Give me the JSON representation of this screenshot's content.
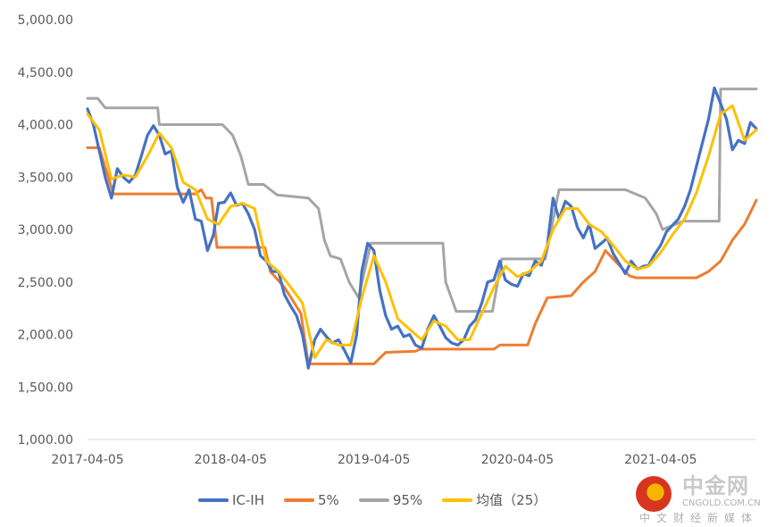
{
  "chart_data": {
    "type": "line",
    "title": "",
    "xlabel": "",
    "ylabel": "",
    "ylim": [
      1000,
      5000
    ],
    "xlim": [
      "2017-04-05",
      "2021-12-05"
    ],
    "y_ticks": [
      "1,000.00",
      "1,500.00",
      "2,000.00",
      "2,500.00",
      "3,000.00",
      "3,500.00",
      "4,000.00",
      "4,500.00",
      "5,000.00"
    ],
    "x_ticks": [
      "2017-04-05",
      "2018-04-05",
      "2019-04-05",
      "2020-04-05",
      "2021-04-05"
    ],
    "grid": false,
    "legend_position": "bottom",
    "series": [
      {
        "name": "IC-IH",
        "color": "#4472C4",
        "points": [
          [
            "2017-04-05",
            4150
          ],
          [
            "2017-04-20",
            4000
          ],
          [
            "2017-05-05",
            3750
          ],
          [
            "2017-05-20",
            3500
          ],
          [
            "2017-06-05",
            3300
          ],
          [
            "2017-06-20",
            3580
          ],
          [
            "2017-07-05",
            3500
          ],
          [
            "2017-07-20",
            3450
          ],
          [
            "2017-08-05",
            3520
          ],
          [
            "2017-08-20",
            3700
          ],
          [
            "2017-09-05",
            3900
          ],
          [
            "2017-09-20",
            3990
          ],
          [
            "2017-10-05",
            3900
          ],
          [
            "2017-10-20",
            3720
          ],
          [
            "2017-11-05",
            3750
          ],
          [
            "2017-11-20",
            3400
          ],
          [
            "2017-12-05",
            3260
          ],
          [
            "2017-12-20",
            3380
          ],
          [
            "2018-01-05",
            3100
          ],
          [
            "2018-01-20",
            3080
          ],
          [
            "2018-02-05",
            2800
          ],
          [
            "2018-02-20",
            2950
          ],
          [
            "2018-03-05",
            3250
          ],
          [
            "2018-03-20",
            3260
          ],
          [
            "2018-04-05",
            3350
          ],
          [
            "2018-04-20",
            3230
          ],
          [
            "2018-05-05",
            3250
          ],
          [
            "2018-05-20",
            3150
          ],
          [
            "2018-06-05",
            3000
          ],
          [
            "2018-06-20",
            2750
          ],
          [
            "2018-07-05",
            2700
          ],
          [
            "2018-07-20",
            2600
          ],
          [
            "2018-08-05",
            2600
          ],
          [
            "2018-08-20",
            2380
          ],
          [
            "2018-09-05",
            2270
          ],
          [
            "2018-09-20",
            2180
          ],
          [
            "2018-10-05",
            2000
          ],
          [
            "2018-10-20",
            1680
          ],
          [
            "2018-11-05",
            1950
          ],
          [
            "2018-11-20",
            2050
          ],
          [
            "2018-12-05",
            1980
          ],
          [
            "2018-12-20",
            1920
          ],
          [
            "2019-01-05",
            1950
          ],
          [
            "2019-01-20",
            1850
          ],
          [
            "2019-02-05",
            1730
          ],
          [
            "2019-02-20",
            2000
          ],
          [
            "2019-03-05",
            2600
          ],
          [
            "2019-03-20",
            2870
          ],
          [
            "2019-04-05",
            2800
          ],
          [
            "2019-04-20",
            2420
          ],
          [
            "2019-05-05",
            2180
          ],
          [
            "2019-05-20",
            2050
          ],
          [
            "2019-06-05",
            2080
          ],
          [
            "2019-06-20",
            1980
          ],
          [
            "2019-07-05",
            2000
          ],
          [
            "2019-07-20",
            1900
          ],
          [
            "2019-08-05",
            1870
          ],
          [
            "2019-08-20",
            2050
          ],
          [
            "2019-09-05",
            2180
          ],
          [
            "2019-09-20",
            2080
          ],
          [
            "2019-10-05",
            1970
          ],
          [
            "2019-10-20",
            1920
          ],
          [
            "2019-11-05",
            1900
          ],
          [
            "2019-11-20",
            1950
          ],
          [
            "2019-12-05",
            2080
          ],
          [
            "2019-12-20",
            2140
          ],
          [
            "2020-01-05",
            2300
          ],
          [
            "2020-01-20",
            2500
          ],
          [
            "2020-02-05",
            2520
          ],
          [
            "2020-02-20",
            2700
          ],
          [
            "2020-03-05",
            2520
          ],
          [
            "2020-03-20",
            2480
          ],
          [
            "2020-04-05",
            2460
          ],
          [
            "2020-04-20",
            2580
          ],
          [
            "2020-05-05",
            2560
          ],
          [
            "2020-05-20",
            2700
          ],
          [
            "2020-06-05",
            2660
          ],
          [
            "2020-06-20",
            2850
          ],
          [
            "2020-07-05",
            3300
          ],
          [
            "2020-07-20",
            3100
          ],
          [
            "2020-08-05",
            3270
          ],
          [
            "2020-08-20",
            3220
          ],
          [
            "2020-09-05",
            3020
          ],
          [
            "2020-09-20",
            2920
          ],
          [
            "2020-10-05",
            3050
          ],
          [
            "2020-10-20",
            2820
          ],
          [
            "2020-11-05",
            2870
          ],
          [
            "2020-11-20",
            2920
          ],
          [
            "2020-12-05",
            2770
          ],
          [
            "2020-12-20",
            2680
          ],
          [
            "2021-01-05",
            2580
          ],
          [
            "2021-01-20",
            2700
          ],
          [
            "2021-02-05",
            2620
          ],
          [
            "2021-02-20",
            2650
          ],
          [
            "2021-03-05",
            2660
          ],
          [
            "2021-03-20",
            2760
          ],
          [
            "2021-04-05",
            2850
          ],
          [
            "2021-04-20",
            2980
          ],
          [
            "2021-05-05",
            3040
          ],
          [
            "2021-05-20",
            3100
          ],
          [
            "2021-06-05",
            3220
          ],
          [
            "2021-06-20",
            3380
          ],
          [
            "2021-07-05",
            3600
          ],
          [
            "2021-07-20",
            3820
          ],
          [
            "2021-08-05",
            4050
          ],
          [
            "2021-08-20",
            4350
          ],
          [
            "2021-09-05",
            4200
          ],
          [
            "2021-09-20",
            4050
          ],
          [
            "2021-10-05",
            3760
          ],
          [
            "2021-10-20",
            3850
          ],
          [
            "2021-11-05",
            3820
          ],
          [
            "2021-11-20",
            4020
          ],
          [
            "2021-12-05",
            3960
          ]
        ]
      },
      {
        "name": "5%",
        "color": "#ED7D31",
        "points": [
          [
            "2017-04-05",
            3780
          ],
          [
            "2017-05-05",
            3780
          ],
          [
            "2017-06-10",
            3340
          ],
          [
            "2018-01-05",
            3340
          ],
          [
            "2018-01-20",
            3380
          ],
          [
            "2018-02-01",
            3300
          ],
          [
            "2018-02-15",
            3300
          ],
          [
            "2018-03-01",
            2830
          ],
          [
            "2018-07-01",
            2830
          ],
          [
            "2018-07-15",
            2600
          ],
          [
            "2018-08-20",
            2450
          ],
          [
            "2018-10-01",
            2200
          ],
          [
            "2018-10-20",
            1720
          ],
          [
            "2019-04-05",
            1720
          ],
          [
            "2019-05-05",
            1830
          ],
          [
            "2019-07-20",
            1840
          ],
          [
            "2019-08-01",
            1860
          ],
          [
            "2020-02-05",
            1860
          ],
          [
            "2020-02-20",
            1900
          ],
          [
            "2020-05-01",
            1900
          ],
          [
            "2020-05-20",
            2100
          ],
          [
            "2020-06-20",
            2350
          ],
          [
            "2020-08-20",
            2370
          ],
          [
            "2020-09-20",
            2500
          ],
          [
            "2020-10-20",
            2600
          ],
          [
            "2020-11-15",
            2800
          ],
          [
            "2020-12-10",
            2700
          ],
          [
            "2021-01-15",
            2560
          ],
          [
            "2021-02-01",
            2540
          ],
          [
            "2021-07-05",
            2540
          ],
          [
            "2021-08-05",
            2600
          ],
          [
            "2021-09-05",
            2700
          ],
          [
            "2021-10-05",
            2900
          ],
          [
            "2021-11-05",
            3050
          ],
          [
            "2021-12-05",
            3280
          ]
        ]
      },
      {
        "name": "95%",
        "color": "#A5A5A5",
        "points": [
          [
            "2017-04-05",
            4250
          ],
          [
            "2017-05-01",
            4250
          ],
          [
            "2017-05-20",
            4160
          ],
          [
            "2017-10-01",
            4160
          ],
          [
            "2017-10-05",
            4000
          ],
          [
            "2018-03-15",
            4000
          ],
          [
            "2018-04-10",
            3900
          ],
          [
            "2018-05-01",
            3700
          ],
          [
            "2018-05-20",
            3430
          ],
          [
            "2018-06-28",
            3430
          ],
          [
            "2018-08-01",
            3330
          ],
          [
            "2018-10-20",
            3300
          ],
          [
            "2018-11-15",
            3200
          ],
          [
            "2018-11-30",
            2900
          ],
          [
            "2018-12-15",
            2750
          ],
          [
            "2019-01-10",
            2720
          ],
          [
            "2019-02-01",
            2500
          ],
          [
            "2019-02-25",
            2350
          ],
          [
            "2019-03-28",
            2870
          ],
          [
            "2019-09-28",
            2870
          ],
          [
            "2019-10-05",
            2500
          ],
          [
            "2019-11-01",
            2220
          ],
          [
            "2020-02-01",
            2220
          ],
          [
            "2020-02-25",
            2720
          ],
          [
            "2020-06-15",
            2720
          ],
          [
            "2020-07-20",
            3380
          ],
          [
            "2021-01-05",
            3380
          ],
          [
            "2021-02-25",
            3300
          ],
          [
            "2021-03-25",
            3150
          ],
          [
            "2021-04-10",
            3000
          ],
          [
            "2021-06-01",
            3080
          ],
          [
            "2021-09-01",
            3080
          ],
          [
            "2021-09-05",
            4340
          ],
          [
            "2021-12-05",
            4340
          ]
        ]
      },
      {
        "name": "均值（25）",
        "color": "#FFC000",
        "points": [
          [
            "2017-04-05",
            4100
          ],
          [
            "2017-05-05",
            3950
          ],
          [
            "2017-06-05",
            3480
          ],
          [
            "2017-07-05",
            3520
          ],
          [
            "2017-08-05",
            3500
          ],
          [
            "2017-09-05",
            3700
          ],
          [
            "2017-10-05",
            3920
          ],
          [
            "2017-11-05",
            3780
          ],
          [
            "2017-12-05",
            3450
          ],
          [
            "2018-01-05",
            3380
          ],
          [
            "2018-02-05",
            3100
          ],
          [
            "2018-03-05",
            3050
          ],
          [
            "2018-04-05",
            3220
          ],
          [
            "2018-05-05",
            3250
          ],
          [
            "2018-06-05",
            3200
          ],
          [
            "2018-07-05",
            2700
          ],
          [
            "2018-08-05",
            2600
          ],
          [
            "2018-09-05",
            2450
          ],
          [
            "2018-10-05",
            2300
          ],
          [
            "2018-11-05",
            1780
          ],
          [
            "2018-12-05",
            1950
          ],
          [
            "2019-01-05",
            1900
          ],
          [
            "2019-02-05",
            1900
          ],
          [
            "2019-03-05",
            2350
          ],
          [
            "2019-04-05",
            2750
          ],
          [
            "2019-05-05",
            2500
          ],
          [
            "2019-06-05",
            2150
          ],
          [
            "2019-07-05",
            2050
          ],
          [
            "2019-08-05",
            1950
          ],
          [
            "2019-09-05",
            2130
          ],
          [
            "2019-10-05",
            2080
          ],
          [
            "2019-11-05",
            1950
          ],
          [
            "2019-12-05",
            1950
          ],
          [
            "2020-01-05",
            2200
          ],
          [
            "2020-02-05",
            2450
          ],
          [
            "2020-03-05",
            2650
          ],
          [
            "2020-04-05",
            2550
          ],
          [
            "2020-05-05",
            2600
          ],
          [
            "2020-06-05",
            2700
          ],
          [
            "2020-07-05",
            3000
          ],
          [
            "2020-08-05",
            3200
          ],
          [
            "2020-09-05",
            3200
          ],
          [
            "2020-10-05",
            3050
          ],
          [
            "2020-11-05",
            2980
          ],
          [
            "2020-12-05",
            2850
          ],
          [
            "2021-01-05",
            2700
          ],
          [
            "2021-02-05",
            2620
          ],
          [
            "2021-03-05",
            2650
          ],
          [
            "2021-04-05",
            2780
          ],
          [
            "2021-05-05",
            2950
          ],
          [
            "2021-06-05",
            3100
          ],
          [
            "2021-07-05",
            3350
          ],
          [
            "2021-08-05",
            3700
          ],
          [
            "2021-09-05",
            4100
          ],
          [
            "2021-10-05",
            4180
          ],
          [
            "2021-11-05",
            3850
          ],
          [
            "2021-12-05",
            3950
          ]
        ]
      }
    ]
  },
  "watermark": {
    "cn": "中金网",
    "en": "CNGOLD.COM.CN",
    "sub": "中文财经新媒体"
  }
}
